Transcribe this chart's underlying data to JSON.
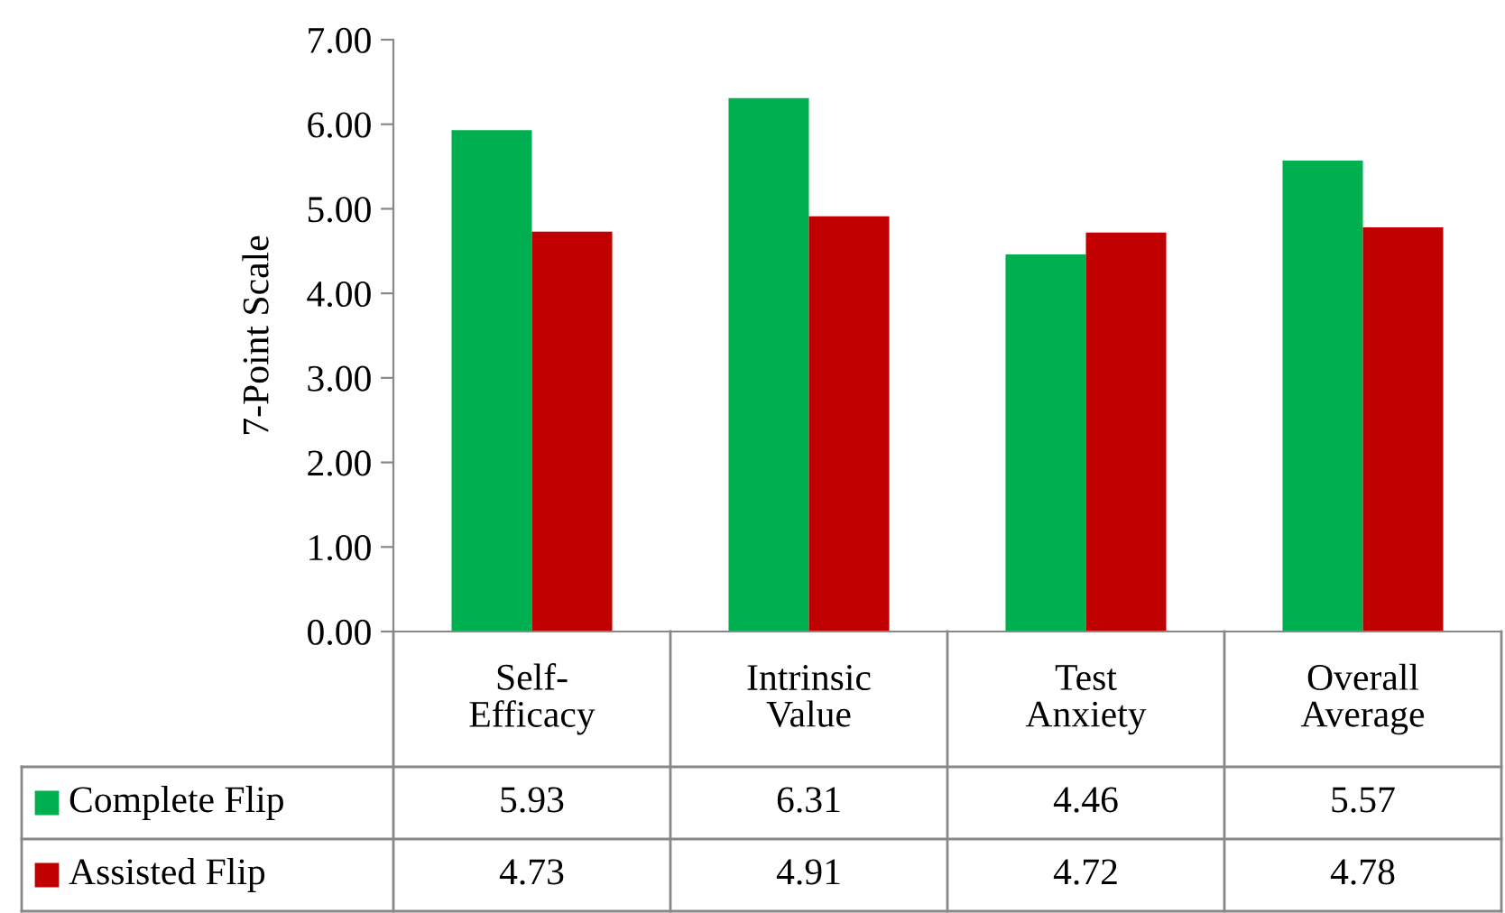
{
  "chart_data": {
    "type": "bar",
    "ylabel": "7-Point Scale",
    "categories": [
      "Self-\nEfficacy",
      "Intrinsic\nValue",
      "Test\nAnxiety",
      "Overall\nAverage"
    ],
    "series": [
      {
        "name": "Complete Flip",
        "color": "#00b050",
        "values": [
          5.93,
          6.31,
          4.46,
          5.57
        ]
      },
      {
        "name": "Assisted Flip",
        "color": "#c00000",
        "values": [
          4.73,
          4.91,
          4.72,
          4.78
        ]
      }
    ],
    "ylim": [
      0,
      7
    ],
    "yticks": [
      {
        "value": 0,
        "label": "0.00"
      },
      {
        "value": 1,
        "label": "1.00"
      },
      {
        "value": 2,
        "label": "2.00"
      },
      {
        "value": 3,
        "label": "3.00"
      },
      {
        "value": 4,
        "label": "4.00"
      },
      {
        "value": 5,
        "label": "5.00"
      },
      {
        "value": 6,
        "label": "6.00"
      },
      {
        "value": 7,
        "label": "7.00"
      }
    ],
    "grid": false,
    "legend": "bottom",
    "data_labels": true
  }
}
